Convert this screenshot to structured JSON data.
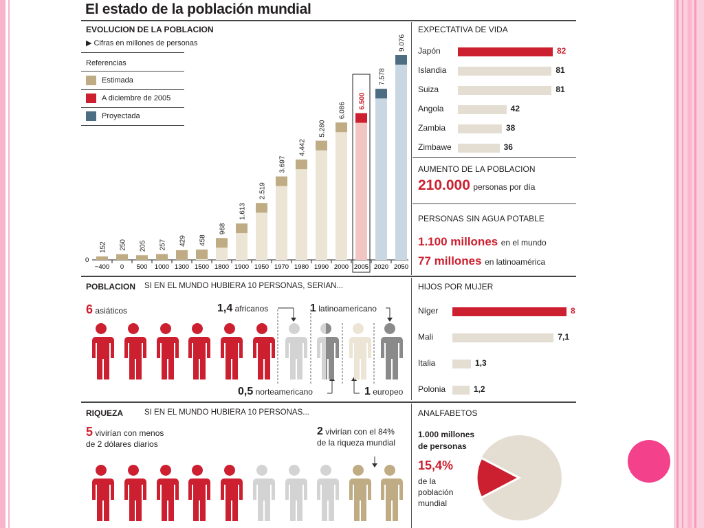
{
  "title": "El estado de la población mundial",
  "colors": {
    "red": "#cc1f2f",
    "tan": "#bfac84",
    "tan_light": "#ece4d4",
    "blue": "#4d6e82",
    "blue_light": "#c9d7e3",
    "red_light": "#f2c5c2",
    "grey_light": "#d3d3d3",
    "grey_dark": "#8a8a8a",
    "gray_bar": "#e4ddd2"
  },
  "evolution": {
    "heading": "EVOLUCION DE LA POBLACION",
    "subheading": "Cifras en millones de personas",
    "legend_title": "Referencias",
    "legend": [
      {
        "label": "Estimada",
        "color": "#bfac84"
      },
      {
        "label": "A diciembre de 2005",
        "color": "#cc1f2f"
      },
      {
        "label": "Proyectada",
        "color": "#4d6e82"
      }
    ]
  },
  "chart_data": [
    {
      "type": "bar",
      "categories": [
        "−400",
        "0",
        "500",
        "1000",
        "1300",
        "1500",
        "1800",
        "1900",
        "1950",
        "1970",
        "1980",
        "1990",
        "2000",
        "2005",
        "2020",
        "2050"
      ],
      "values": [
        152,
        250,
        205,
        257,
        429,
        458,
        968,
        1613,
        2519,
        3697,
        4442,
        5280,
        6086,
        6500,
        7578,
        9076
      ],
      "value_labels": [
        "152",
        "250",
        "205",
        "257",
        "429",
        "458",
        "968",
        "1.613",
        "2.519",
        "3.697",
        "4.442",
        "5.280",
        "6.086",
        "6.500",
        "7.578",
        "9.076"
      ],
      "status": [
        "estimada",
        "estimada",
        "estimada",
        "estimada",
        "estimada",
        "estimada",
        "estimada",
        "estimada",
        "estimada",
        "estimada",
        "estimada",
        "estimada",
        "estimada",
        "diciembre2005",
        "proyectada",
        "proyectada"
      ],
      "y_zero_label": "0",
      "ylim": [
        0,
        9076
      ]
    },
    {
      "type": "bar",
      "orientation": "horizontal",
      "categories": [
        "Japón",
        "Islandia",
        "Suiza",
        "Angola",
        "Zambia",
        "Zimbawe"
      ],
      "values": [
        82,
        81,
        81,
        42,
        38,
        36
      ]
    },
    {
      "type": "bar",
      "orientation": "horizontal",
      "categories": [
        "Níger",
        "Mali",
        "Italia",
        "Polonia"
      ],
      "values": [
        8,
        7.1,
        1.3,
        1.2
      ],
      "value_labels": [
        "8",
        "7,1",
        "1,3",
        "1,2"
      ]
    },
    {
      "type": "pie",
      "values": [
        15.4,
        84.6
      ]
    }
  ],
  "life_expectancy": {
    "heading": "EXPECTATIVA DE VIDA"
  },
  "growth": {
    "heading": "AUMENTO DE LA POBLACION",
    "number": "210.000",
    "text": "personas por día"
  },
  "water": {
    "heading": "PERSONAS SIN AGUA POTABLE",
    "line1_num": "1.100 millones",
    "line1_text": "en el mundo",
    "line2_num": "77 millones",
    "line2_text": "en latinoamérica"
  },
  "children": {
    "heading": "HIJOS POR MUJER"
  },
  "population": {
    "heading": "POBLACION",
    "subheading": "SI EN EL MUNDO HUBIERA 10 PERSONAS, SERIAN...",
    "asian_num": "6",
    "asian_text": "asiáticos",
    "african_num": "1,4",
    "african_text": "africanos",
    "latin_num": "1",
    "latin_text": "latinoamericano",
    "northam_num": "0,5",
    "northam_text": "norteamericano",
    "euro_num": "1",
    "euro_text": "europeo"
  },
  "wealth": {
    "heading": "RIQUEZA",
    "subheading": "SI EN EL MUNDO HUBIERA 10 PERSONAS...",
    "left_num": "5",
    "left_line1": "vivirían con menos",
    "left_line2": "de 2 dólares diarios",
    "right_num": "2",
    "right_line1": "vivirían con el 84%",
    "right_line2": "de la riqueza mundial"
  },
  "illiterate": {
    "heading": "ANALFABETOS",
    "line1": "1.000 millones",
    "line2": "de personas",
    "pct": "15,4%",
    "line3": "de la",
    "line4": "población",
    "line5": "mundial"
  }
}
